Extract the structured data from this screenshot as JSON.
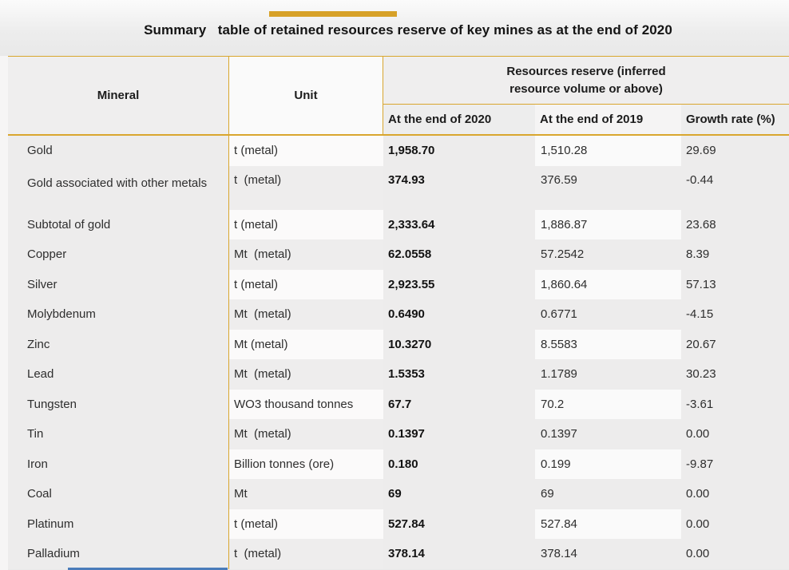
{
  "title": "Summary   table of retained resources reserve of key mines as at the end of 2020",
  "accent_colors": {
    "gold": "#d9a62e",
    "gold_bar": "#d7a128",
    "blue_bar": "#4a7cba"
  },
  "table": {
    "headers": {
      "mineral": "Mineral",
      "unit": "Unit",
      "group": "Resources reserve (inferred resource volume or above)",
      "end2020": "At the end of 2020",
      "end2019": "At the end of 2019",
      "growth": "Growth rate (%)"
    },
    "rows": [
      {
        "mineral": "Gold",
        "unit": "t (metal)",
        "v2020": "1,958.70",
        "v2019": "1,510.28",
        "growth": "29.69"
      },
      {
        "mineral": "Gold associated with other metals",
        "unit": "t  (metal)",
        "v2020": "374.93",
        "v2019": "376.59",
        "growth": "-0.44"
      },
      {
        "mineral": "Subtotal of gold",
        "unit": "t (metal)",
        "v2020": "2,333.64",
        "v2019": "1,886.87",
        "growth": "23.68"
      },
      {
        "mineral": "Copper",
        "unit": "Mt  (metal)",
        "v2020": "62.0558",
        "v2019": "57.2542",
        "growth": "8.39"
      },
      {
        "mineral": "Silver",
        "unit": "t (metal)",
        "v2020": "2,923.55",
        "v2019": "1,860.64",
        "growth": "57.13"
      },
      {
        "mineral": "Molybdenum",
        "unit": "Mt  (metal)",
        "v2020": "0.6490",
        "v2019": "0.6771",
        "growth": "-4.15"
      },
      {
        "mineral": "Zinc",
        "unit": "Mt (metal)",
        "v2020": "10.3270",
        "v2019": "8.5583",
        "growth": "20.67"
      },
      {
        "mineral": "Lead",
        "unit": "Mt  (metal)",
        "v2020": "1.5353",
        "v2019": "1.1789",
        "growth": "30.23"
      },
      {
        "mineral": "Tungsten",
        "unit": "WO3 thousand tonnes",
        "v2020": "67.7",
        "v2019": "70.2",
        "growth": "-3.61"
      },
      {
        "mineral": "Tin",
        "unit": "Mt  (metal)",
        "v2020": "0.1397",
        "v2019": "0.1397",
        "growth": "0.00"
      },
      {
        "mineral": "Iron",
        "unit": "Billion tonnes (ore)",
        "v2020": "0.180",
        "v2019": "0.199",
        "growth": "-9.87"
      },
      {
        "mineral": "Coal",
        "unit": "Mt",
        "v2020": "69",
        "v2019": "69",
        "growth": "0.00"
      },
      {
        "mineral": "Platinum",
        "unit": "t (metal)",
        "v2020": "527.84",
        "v2019": "527.84",
        "growth": "0.00"
      },
      {
        "mineral": "Palladium",
        "unit": "t  (metal)",
        "v2020": "378.14",
        "v2019": "378.14",
        "growth": "0.00"
      }
    ]
  }
}
